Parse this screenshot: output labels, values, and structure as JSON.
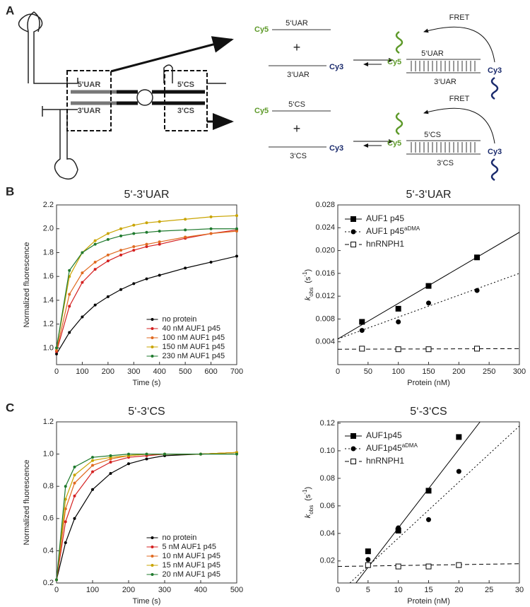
{
  "panels": [
    "A",
    "B",
    "C"
  ],
  "diagram": {
    "structure_labels": [
      "5'UAR",
      "3'UAR",
      "5'CS",
      "3'CS"
    ],
    "reactions": [
      {
        "cy5": "Cy5",
        "top": "5‘UAR",
        "plus": "+",
        "bottom": "3‘UAR",
        "cy3": "Cy3",
        "fret": "FRET",
        "product_cy5": "Cy5",
        "product_top": "5‘UAR",
        "product_bottom": "3‘UAR",
        "product_cy3": "Cy3"
      },
      {
        "cy5": "Cy5",
        "top": "5‘CS",
        "plus": "+",
        "bottom": "3‘CS",
        "cy3": "Cy3",
        "fret": "FRET",
        "product_cy5": "Cy5",
        "product_top": "5‘CS",
        "product_bottom": "3‘CS",
        "product_cy3": "Cy3"
      }
    ]
  },
  "chart_data": [
    {
      "type": "line",
      "title": "5‘-3‘UAR",
      "xlabel": "Time (s)",
      "ylabel": "Normalized fluorescence",
      "xlim": [
        0,
        700
      ],
      "xticks": [
        0,
        100,
        200,
        300,
        400,
        500,
        600,
        700
      ],
      "ylim": [
        0.86,
        2.2
      ],
      "yticks": [
        {
          "value": 1,
          "label": "1.0"
        },
        1.2,
        1.4,
        1.6,
        1.8,
        {
          "value": 2,
          "label": "2.0"
        },
        2.2
      ],
      "x": [
        0,
        50,
        100,
        150,
        200,
        250,
        300,
        350,
        400,
        500,
        600,
        700
      ],
      "series": [
        {
          "name": "no protein",
          "color": "#000000",
          "values": [
            0.95,
            1.13,
            1.26,
            1.36,
            1.43,
            1.49,
            1.54,
            1.58,
            1.61,
            1.67,
            1.72,
            1.77
          ]
        },
        {
          "name": "40 nM AUF1 p45",
          "color": "#d42020",
          "values": [
            0.97,
            1.35,
            1.55,
            1.66,
            1.73,
            1.78,
            1.82,
            1.85,
            1.87,
            1.92,
            1.96,
            1.99
          ]
        },
        {
          "name": "100 nM AUF1 p45",
          "color": "#e06a20",
          "values": [
            0.98,
            1.45,
            1.63,
            1.72,
            1.78,
            1.82,
            1.85,
            1.87,
            1.89,
            1.93,
            1.96,
            1.98
          ]
        },
        {
          "name": "150 nM AUF1 p45",
          "color": "#c9a400",
          "values": [
            1.0,
            1.6,
            1.8,
            1.9,
            1.96,
            2.0,
            2.03,
            2.05,
            2.06,
            2.08,
            2.1,
            2.11
          ]
        },
        {
          "name": "230 nM AUF1 p45",
          "color": "#1f7a2e",
          "values": [
            1.0,
            1.65,
            1.8,
            1.87,
            1.91,
            1.94,
            1.96,
            1.97,
            1.98,
            1.99,
            2.0,
            2.0
          ]
        }
      ]
    },
    {
      "type": "scatter",
      "title": "5‘-3‘UAR",
      "xlabel": "Protein (nM)",
      "ylabel": {
        "k": "k",
        "sub": "obs",
        "unit": "(s",
        "sup": "-1",
        "end": ")"
      },
      "xlim": [
        0,
        300
      ],
      "xticks": [
        0,
        50,
        100,
        150,
        200,
        250,
        300
      ],
      "ylim": [
        0,
        0.028
      ],
      "yticks": [
        0.004,
        0.008,
        0.012,
        0.016,
        {
          "value": 0.02,
          "label": "0.020"
        },
        0.024,
        0.028
      ],
      "x": [
        40,
        100,
        150,
        230
      ],
      "series": [
        {
          "name": "AUF1 p45",
          "marker": "square",
          "dash": "none",
          "color": "#000000",
          "values": [
            0.0075,
            0.0098,
            0.0138,
            0.0188
          ],
          "fit_x": [
            0,
            300
          ],
          "fit_values": [
            0.0045,
            0.0232
          ]
        },
        {
          "name": "AUF1 p45",
          "name_sup": "aDMA",
          "marker": "circle",
          "dash": "2,3",
          "color": "#000000",
          "values": [
            0.006,
            0.0075,
            0.0108,
            0.013
          ],
          "fit_x": [
            0,
            300
          ],
          "fit_values": [
            0.0045,
            0.016
          ]
        },
        {
          "name": "hnRNPH1",
          "marker": "open-square",
          "dash": "6,4",
          "color": "#000000",
          "values": [
            0.0028,
            0.0027,
            0.0027,
            0.0028
          ],
          "fit_x": [
            0,
            300
          ],
          "fit_values": [
            0.0027,
            0.0028
          ]
        }
      ]
    },
    {
      "type": "line",
      "title": "5‘-3‘CS",
      "xlabel": "Time (s)",
      "ylabel": "Normalized fluorescence",
      "xlim": [
        0,
        500
      ],
      "xticks": [
        0,
        100,
        200,
        300,
        400,
        500
      ],
      "ylim": [
        0.2,
        1.2
      ],
      "yticks": [
        0.2,
        0.4,
        0.6,
        0.8,
        {
          "value": 1,
          "label": "1.0"
        },
        1.2
      ],
      "x": [
        0,
        25,
        50,
        100,
        150,
        200,
        250,
        300,
        400,
        500
      ],
      "series": [
        {
          "name": "no protein",
          "color": "#000000",
          "values": [
            0.22,
            0.45,
            0.6,
            0.78,
            0.88,
            0.94,
            0.97,
            0.99,
            1.0,
            1.01
          ]
        },
        {
          "name": "5 nM AUF1 p45",
          "color": "#d42020",
          "values": [
            0.22,
            0.58,
            0.74,
            0.89,
            0.95,
            0.98,
            0.99,
            1.0,
            1.0,
            1.01
          ]
        },
        {
          "name": "10 nM AUF1 p45",
          "color": "#e06a20",
          "values": [
            0.22,
            0.66,
            0.82,
            0.93,
            0.97,
            0.99,
            1.0,
            1.0,
            1.0,
            1.01
          ]
        },
        {
          "name": "15 nM AUF1 p45",
          "color": "#c9a400",
          "values": [
            0.22,
            0.72,
            0.87,
            0.96,
            0.98,
            0.99,
            1.0,
            1.0,
            1.0,
            1.01
          ]
        },
        {
          "name": "20 nM AUF1 p45",
          "color": "#1f7a2e",
          "values": [
            0.22,
            0.8,
            0.92,
            0.98,
            0.99,
            1.0,
            1.0,
            1.0,
            1.0,
            1.0
          ]
        }
      ]
    },
    {
      "type": "scatter",
      "title": "5‘-3‘CS",
      "xlabel": "Protein (nM)",
      "ylabel": {
        "k": "k",
        "sub": "obs",
        "unit": "(s",
        "sup": "-1",
        "end": ")"
      },
      "xlim": [
        0,
        30
      ],
      "xticks": [
        0,
        5,
        10,
        15,
        20,
        25,
        30
      ],
      "ylim": [
        0.004,
        0.121
      ],
      "yticks": [
        0.02,
        0.04,
        0.06,
        0.08,
        {
          "value": 0.1,
          "label": "0.10"
        },
        0.12
      ],
      "x": [
        5,
        10,
        15,
        20
      ],
      "series": [
        {
          "name": "AUF1p45",
          "marker": "square",
          "dash": "none",
          "color": "#000000",
          "values": [
            0.027,
            0.042,
            0.071,
            0.11
          ],
          "fit_x": [
            3,
            23.5
          ],
          "fit_values": [
            0.004,
            0.121
          ]
        },
        {
          "name": "AUF1p45",
          "name_sup": "aDMA",
          "marker": "circle",
          "dash": "2,3",
          "color": "#000000",
          "values": [
            0.021,
            0.044,
            0.05,
            0.085
          ],
          "fit_x": [
            2,
            30
          ],
          "fit_values": [
            0.004,
            0.118
          ]
        },
        {
          "name": "hnRNPH1",
          "marker": "open-square",
          "dash": "6,4",
          "color": "#000000",
          "values": [
            0.017,
            0.016,
            0.016,
            0.017
          ],
          "fit_x": [
            0,
            30
          ],
          "fit_values": [
            0.016,
            0.018
          ]
        }
      ]
    }
  ]
}
